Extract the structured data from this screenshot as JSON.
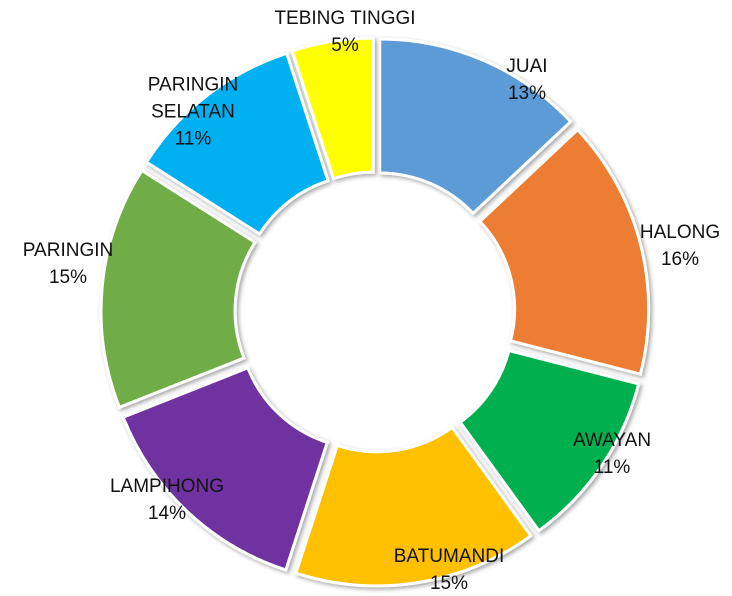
{
  "chart_data": {
    "type": "donut",
    "categories": [
      "JUAI",
      "HALONG",
      "AWAYAN",
      "BATUMANDI",
      "LAMPIHONG",
      "PARINGIN",
      "PARINGIN SELATAN",
      "TEBING TINGGI"
    ],
    "values": [
      13,
      16,
      11,
      15,
      14,
      15,
      11,
      5
    ],
    "value_labels": [
      "13%",
      "16%",
      "11%",
      "15%",
      "14%",
      "15%",
      "11%",
      "5%"
    ],
    "colors": [
      "#5b9bd5",
      "#ed7d31",
      "#00b050",
      "#ffc000",
      "#7030a0",
      "#70ad47",
      "#00b0f0",
      "#ffff00"
    ]
  }
}
